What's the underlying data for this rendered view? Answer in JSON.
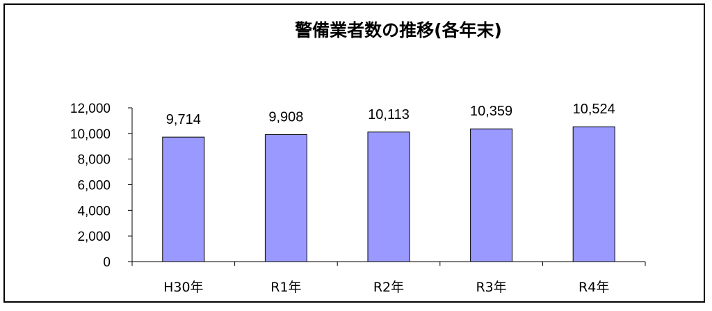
{
  "chart_data": {
    "type": "bar",
    "title": "警備業者数の推移(各年末)",
    "categories": [
      "H30年",
      "R1年",
      "R2年",
      "R3年",
      "R4年"
    ],
    "values": [
      9714,
      9908,
      10113,
      10359,
      10524
    ],
    "data_labels": [
      "9,714",
      "9,908",
      "10,113",
      "10,359",
      "10,524"
    ],
    "yticks": [
      "0",
      "2,000",
      "4,000",
      "6,000",
      "8,000",
      "10,000",
      "12,000"
    ],
    "ylim": [
      0,
      12000
    ],
    "xlabel": "",
    "ylabel": "",
    "grid": false,
    "legend": "none",
    "bar_color": "#9999ff",
    "bar_border_color": "#000000"
  }
}
